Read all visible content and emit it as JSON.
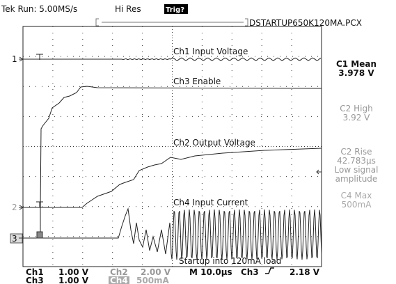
{
  "header": {
    "run": "Tek Run: 5.00MS/s",
    "mode": "Hi Res",
    "trigger": "Trig?",
    "filename": "DSTARTUP650K120MA.PCX"
  },
  "measurements": [
    {
      "lines": [
        "C1 Mean",
        "3.978 V"
      ]
    },
    {
      "lines": [
        "C2 High",
        "3.92 V"
      ]
    },
    {
      "lines": [
        "C2 Rise",
        "42.783µs",
        "Low signal",
        "amplitude"
      ]
    },
    {
      "lines": [
        "C4 Max",
        "500mA"
      ]
    }
  ],
  "traces": [
    "Ch1 Input Voltage",
    "Ch3 Enable",
    "Ch2 Output Voltage",
    "Ch4 Input Current"
  ],
  "annotation": "Startup into 120mA load",
  "markers": [
    "1",
    "2",
    "3"
  ],
  "footer": {
    "row1": [
      "Ch1",
      "1.00 V",
      "Ch2",
      "2.00 V",
      "M 10.0µs",
      "Ch3",
      "2.18 V"
    ],
    "row2": [
      "Ch3",
      "1.00 V",
      "Ch4",
      "500mA"
    ]
  }
}
